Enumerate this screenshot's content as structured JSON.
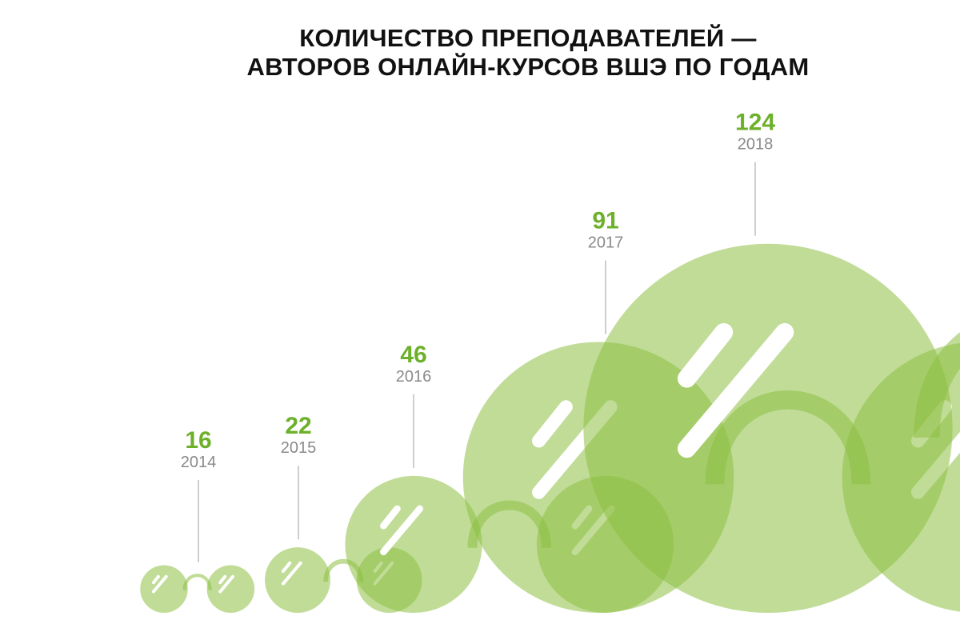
{
  "chart_data": {
    "type": "bubble",
    "title_lines": [
      "КОЛИЧЕСТВО ПРЕПОДАВАТЕЛЕЙ —",
      "АВТОРОВ ОНЛАЙН-КУРСОВ ВШЭ ПО ГОДАМ"
    ],
    "categories": [
      "2014",
      "2015",
      "2016",
      "2017",
      "2018"
    ],
    "values": [
      16,
      22,
      46,
      91,
      124
    ],
    "value_labels": [
      "16",
      "22",
      "46",
      "91",
      "124"
    ],
    "xlabel": "",
    "ylabel": ""
  },
  "colors": {
    "lens": "#8cc042",
    "value_text": "#6db02a",
    "year_text": "#8a8a8a",
    "leader_line": "#bdbdbd"
  }
}
